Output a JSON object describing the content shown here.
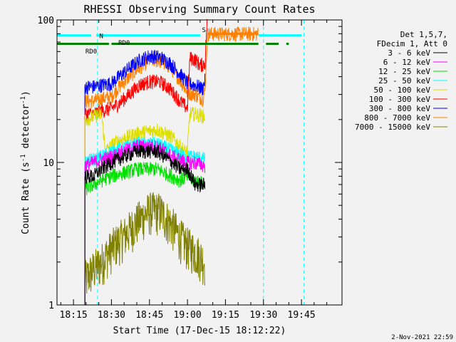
{
  "chart_data": {
    "type": "line",
    "title": "RHESSI Observing Summary Count Rates",
    "xlabel": "Start Time (17-Dec-15 18:12:22)",
    "ylabel_main": "Count Rate (s",
    "ylabel_sup1": "-1",
    "ylabel_mid": " detector",
    "ylabel_sup2": "-1",
    "ylabel_end": ")",
    "y_scale": "log",
    "ylim": [
      1,
      100
    ],
    "xlim_minutes": [
      1088.5,
      1201
    ],
    "x_ticks": [
      {
        "label": "18:15",
        "minute": 1095
      },
      {
        "label": "18:30",
        "minute": 1110
      },
      {
        "label": "18:45",
        "minute": 1125
      },
      {
        "label": "19:00",
        "minute": 1140
      },
      {
        "label": "19:15",
        "minute": 1155
      },
      {
        "label": "19:30",
        "minute": 1170
      },
      {
        "label": "19:45",
        "minute": 1185
      }
    ],
    "y_ticks": [
      {
        "label": "1",
        "value": 1
      },
      {
        "label": "10",
        "value": 10
      },
      {
        "label": "100",
        "value": 100
      }
    ],
    "legend_header": [
      "Det 1,5,7,",
      "FDecim 1, Att 0"
    ],
    "legend_placement": "right",
    "series": [
      {
        "name": "3 - 6 keV",
        "color": "#000000",
        "points": [
          [
            1099.5,
            8
          ],
          [
            1103,
            8
          ],
          [
            1106,
            9
          ],
          [
            1110,
            10
          ],
          [
            1120,
            12
          ],
          [
            1128,
            12
          ],
          [
            1134,
            10
          ],
          [
            1137,
            9
          ],
          [
            1140,
            9
          ],
          [
            1143,
            7
          ],
          [
            1147,
            7
          ]
        ]
      },
      {
        "name": "6 - 12 keV",
        "color": "#ff00ff",
        "points": [
          [
            1099.5,
            9.5
          ],
          [
            1103,
            10
          ],
          [
            1106,
            10.5
          ],
          [
            1110,
            11
          ],
          [
            1120,
            13
          ],
          [
            1128,
            13
          ],
          [
            1134,
            11
          ],
          [
            1137,
            10.5
          ],
          [
            1140,
            10
          ],
          [
            1143,
            10
          ],
          [
            1147,
            9.5
          ]
        ]
      },
      {
        "name": "12 - 25 keV",
        "color": "#00e000",
        "points": [
          [
            1099.5,
            6.5
          ],
          [
            1103,
            7
          ],
          [
            1106,
            7.5
          ],
          [
            1110,
            8
          ],
          [
            1120,
            9
          ],
          [
            1128,
            9
          ],
          [
            1134,
            8
          ],
          [
            1137,
            7.5
          ],
          [
            1140,
            8
          ],
          [
            1143,
            7.5
          ],
          [
            1147,
            7
          ]
        ]
      },
      {
        "name": "25 - 50 keV",
        "color": "#00ffff",
        "points": [
          [
            1099.5,
            10
          ],
          [
            1103,
            10.5
          ],
          [
            1106,
            11
          ],
          [
            1110,
            12
          ],
          [
            1120,
            13.5
          ],
          [
            1128,
            13.5
          ],
          [
            1134,
            12
          ],
          [
            1137,
            11.5
          ],
          [
            1140,
            11
          ],
          [
            1143,
            11
          ],
          [
            1147,
            10.5
          ]
        ]
      },
      {
        "name": "50 - 100 keV",
        "color": "#dddd00",
        "points": [
          [
            1099.5,
            20
          ],
          [
            1103,
            21
          ],
          [
            1106,
            22
          ],
          [
            1107.5,
            12
          ],
          [
            1112,
            14
          ],
          [
            1120,
            16
          ],
          [
            1128,
            17
          ],
          [
            1134,
            15
          ],
          [
            1137,
            13
          ],
          [
            1139,
            12
          ],
          [
            1140,
            12
          ],
          [
            1141,
            22
          ],
          [
            1143,
            22
          ],
          [
            1147,
            21
          ]
        ]
      },
      {
        "name": "100 - 300 keV",
        "color": "#ff0000",
        "points": [
          [
            1099.5,
            22
          ],
          [
            1103,
            22
          ],
          [
            1106,
            23
          ],
          [
            1110,
            24
          ],
          [
            1113,
            26
          ],
          [
            1117,
            30
          ],
          [
            1121,
            35
          ],
          [
            1125,
            37
          ],
          [
            1129,
            37
          ],
          [
            1133,
            33
          ],
          [
            1137,
            27
          ],
          [
            1140,
            24
          ],
          [
            1141,
            54
          ],
          [
            1143,
            53
          ],
          [
            1145,
            48
          ],
          [
            1147,
            50
          ],
          [
            1147.8,
            100
          ]
        ]
      },
      {
        "name": "300 - 800 keV",
        "color": "#0000ff",
        "points": [
          [
            1099.5,
            34
          ],
          [
            1103,
            34
          ],
          [
            1106,
            35
          ],
          [
            1110,
            36
          ],
          [
            1113,
            40
          ],
          [
            1117,
            46
          ],
          [
            1121,
            52
          ],
          [
            1125,
            56
          ],
          [
            1129,
            55
          ],
          [
            1133,
            50
          ],
          [
            1137,
            42
          ],
          [
            1140,
            36
          ],
          [
            1143,
            35
          ],
          [
            1146,
            33
          ],
          [
            1147,
            38
          ]
        ]
      },
      {
        "name": "800 - 7000 keV",
        "color": "#ff8000",
        "points": [
          [
            1099.5,
            27
          ],
          [
            1103,
            27
          ],
          [
            1106,
            28
          ],
          [
            1110,
            29
          ],
          [
            1113,
            34
          ],
          [
            1117,
            40
          ],
          [
            1121,
            46
          ],
          [
            1125,
            52
          ],
          [
            1129,
            52
          ],
          [
            1133,
            47
          ],
          [
            1137,
            38
          ],
          [
            1140,
            31
          ],
          [
            1143,
            30
          ],
          [
            1146,
            28
          ],
          [
            1147,
            32
          ],
          [
            1148,
            80
          ],
          [
            1168,
            80
          ]
        ]
      },
      {
        "name": "7000 - 15000 keV",
        "color": "#808000",
        "points": [
          [
            1099.5,
            1.5
          ],
          [
            1103,
            1.8
          ],
          [
            1106,
            2
          ],
          [
            1110,
            2.5
          ],
          [
            1116,
            3.2
          ],
          [
            1121,
            4
          ],
          [
            1125,
            4.6
          ],
          [
            1129,
            4.6
          ],
          [
            1133,
            3.8
          ],
          [
            1137,
            3
          ],
          [
            1140,
            2.6
          ],
          [
            1143,
            2.4
          ],
          [
            1147,
            2
          ]
        ]
      }
    ],
    "state_bars": [
      {
        "label": "N",
        "color": "#00ffff",
        "value": 78,
        "segments": [
          [
            1088.5,
            1102
          ],
          [
            1104,
            1145
          ],
          [
            1168,
            1185
          ]
        ]
      },
      {
        "label": "RD0",
        "color": "#008000",
        "value": 68,
        "segments": [
          [
            1088.5,
            1109
          ],
          [
            1110,
            1168
          ],
          [
            1171,
            1176
          ],
          [
            1179,
            1180
          ]
        ]
      },
      {
        "label": "S",
        "color": "#ff8000",
        "value": 80,
        "segments": [
          [
            1148,
            1168
          ]
        ]
      }
    ],
    "state_labels": [
      {
        "label": "N",
        "color": "#00ffff",
        "minute": 1106,
        "value": 78
      },
      {
        "label": "RD0",
        "color": "#008000",
        "minute": 1102,
        "value": 61
      },
      {
        "label": "RD0",
        "color": "#008000",
        "minute": 1115,
        "value": 70
      },
      {
        "label": "S",
        "color": "#ff8000",
        "minute": 1146.5,
        "value": 86
      }
    ],
    "dashed_lines": [
      {
        "minute": 1104.5,
        "color": "#00ffff"
      },
      {
        "minute": 1170,
        "color": "#00ffff"
      },
      {
        "minute": 1186,
        "color": "#00ffff"
      }
    ],
    "footer": "2-Nov-2021 22:59"
  }
}
